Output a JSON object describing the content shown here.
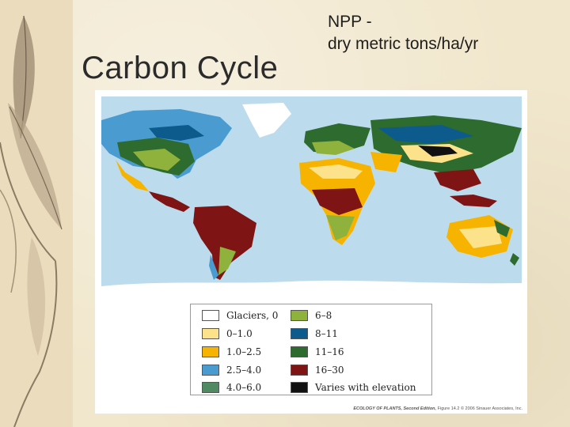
{
  "slide": {
    "title": "Carbon Cycle",
    "subtitle_line1": "NPP -",
    "subtitle_line2": "dry metric tons/ha/yr"
  },
  "figure": {
    "credit_bold": "ECOLOGY OF PLANTS, Second Edition,",
    "credit_rest": " Figure 14.2 © 2006 Sinauer Associates, Inc."
  },
  "legend": [
    {
      "label": "Glaciers, 0",
      "color": "#ffffff"
    },
    {
      "label": "0–1.0",
      "color": "#fde28c"
    },
    {
      "label": "1.0–2.5",
      "color": "#f6b400"
    },
    {
      "label": "2.5–4.0",
      "color": "#4a9bcf"
    },
    {
      "label": "4.0–6.0",
      "color": "#4f8a62"
    },
    {
      "label": "6–8",
      "color": "#8fb23c"
    },
    {
      "label": "8–11",
      "color": "#0d5a8c"
    },
    {
      "label": "11–16",
      "color": "#2e6b2e"
    },
    {
      "label": "16–30",
      "color": "#7e1514"
    },
    {
      "label": "Varies with elevation",
      "color": "#111111"
    }
  ],
  "colors": {
    "ocean": "#bcdcee",
    "background": "#f1e7cd"
  }
}
